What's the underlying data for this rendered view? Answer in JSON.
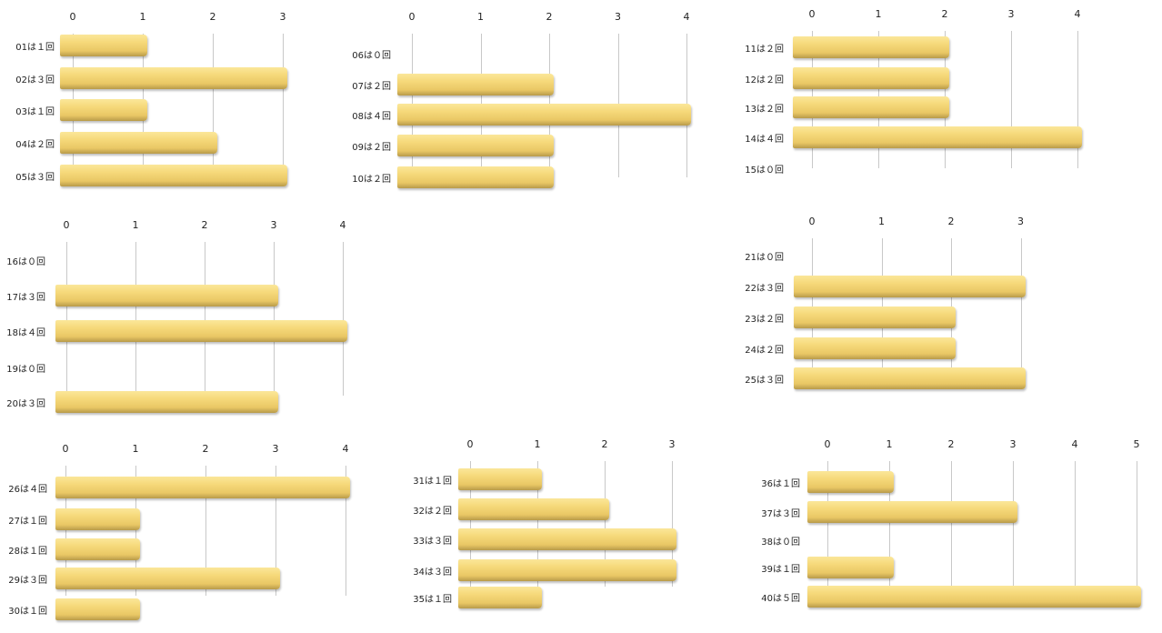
{
  "chart_data": [
    {
      "type": "bar",
      "orientation": "horizontal",
      "categories": [
        "01は１回",
        "02は３回",
        "03は１回",
        "04は２回",
        "05は３回"
      ],
      "values": [
        1,
        3,
        1,
        2,
        3
      ],
      "xticks": [
        "0",
        "1",
        "2",
        "3"
      ],
      "xlim": [
        0,
        3
      ]
    },
    {
      "type": "bar",
      "orientation": "horizontal",
      "categories": [
        "06は０回",
        "07は２回",
        "08は４回",
        "09は２回",
        "10は２回"
      ],
      "values": [
        0,
        2,
        4,
        2,
        2
      ],
      "xticks": [
        "0",
        "1",
        "2",
        "3",
        "4"
      ],
      "xlim": [
        0,
        4
      ]
    },
    {
      "type": "bar",
      "orientation": "horizontal",
      "categories": [
        "11は２回",
        "12は２回",
        "13は２回",
        "14は４回",
        "15は０回"
      ],
      "values": [
        2,
        2,
        2,
        4,
        0
      ],
      "xticks": [
        "0",
        "1",
        "2",
        "3",
        "4"
      ],
      "xlim": [
        0,
        4
      ]
    },
    {
      "type": "bar",
      "orientation": "horizontal",
      "categories": [
        "16は０回",
        "17は３回",
        "18は４回",
        "19は０回",
        "20は３回"
      ],
      "values": [
        0,
        3,
        4,
        0,
        3
      ],
      "xticks": [
        "0",
        "1",
        "2",
        "3",
        "4"
      ],
      "xlim": [
        0,
        4
      ]
    },
    {
      "type": "bar",
      "orientation": "horizontal",
      "categories": [
        "21は０回",
        "22は３回",
        "23は２回",
        "24は２回",
        "25は３回"
      ],
      "values": [
        0,
        3,
        2,
        2,
        3
      ],
      "xticks": [
        "0",
        "1",
        "2",
        "3"
      ],
      "xlim": [
        0,
        3
      ]
    },
    {
      "type": "bar",
      "orientation": "horizontal",
      "categories": [
        "26は４回",
        "27は１回",
        "28は１回",
        "29は３回",
        "30は１回"
      ],
      "values": [
        4,
        1,
        1,
        3,
        1
      ],
      "xticks": [
        "0",
        "1",
        "2",
        "3",
        "4"
      ],
      "xlim": [
        0,
        4
      ]
    },
    {
      "type": "bar",
      "orientation": "horizontal",
      "categories": [
        "31は１回",
        "32は２回",
        "33は３回",
        "34は３回",
        "35は１回"
      ],
      "values": [
        1,
        2,
        3,
        3,
        1
      ],
      "xticks": [
        "0",
        "1",
        "2",
        "3"
      ],
      "xlim": [
        0,
        3
      ]
    },
    {
      "type": "bar",
      "orientation": "horizontal",
      "categories": [
        "36は１回",
        "37は３回",
        "38は０回",
        "39は１回",
        "40は５回"
      ],
      "values": [
        1,
        3,
        0,
        1,
        5
      ],
      "xticks": [
        "0",
        "1",
        "2",
        "3",
        "4",
        "5"
      ],
      "xlim": [
        0,
        5
      ]
    }
  ],
  "colors": {
    "bar": "#f6d97a",
    "grid": "#c8c8c8"
  }
}
